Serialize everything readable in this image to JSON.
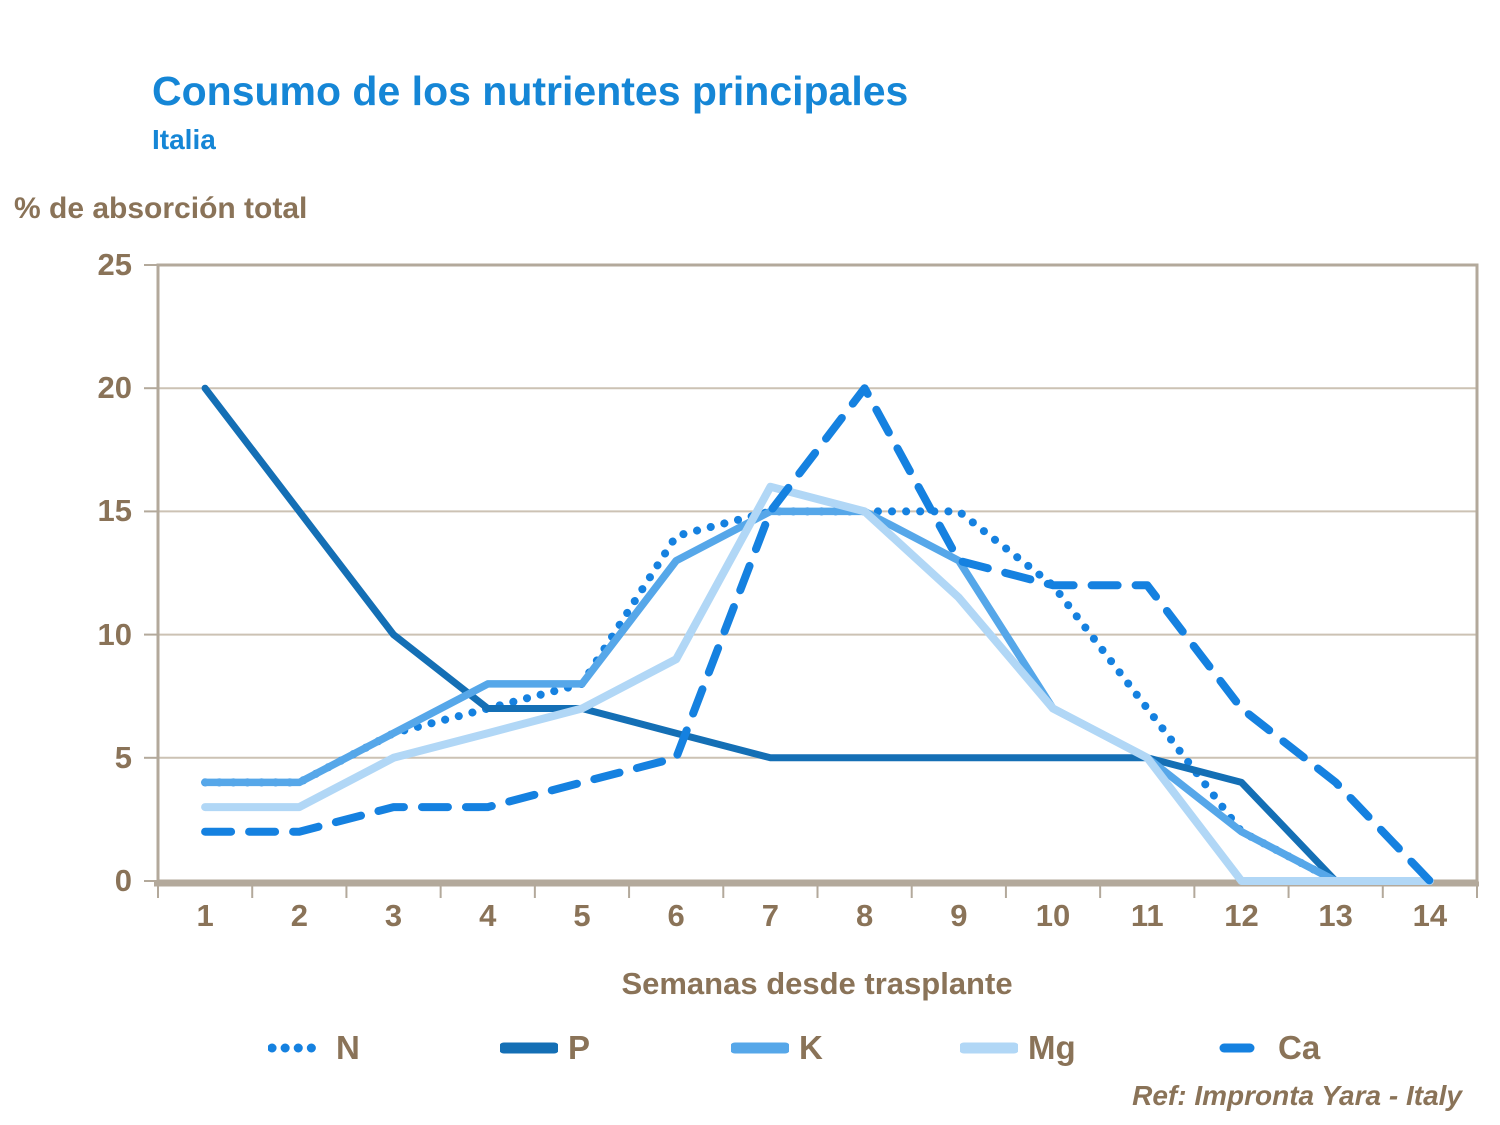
{
  "header": {
    "title": "Consumo de los nutrientes principales",
    "subtitle": "Italia"
  },
  "axes": {
    "y_title": "% de absorción total",
    "x_title": "Semanas desde trasplante"
  },
  "footer": {
    "ref": "Ref: Impronta Yara - Italy"
  },
  "colors": {
    "title_blue": "#1586D6",
    "text_brown": "#8A7358",
    "gridline": "#CCC2B4",
    "frame": "#B3A99B",
    "background": "#FFFFFF"
  },
  "chart_data": {
    "type": "line",
    "title": "Consumo de los nutrientes principales",
    "subtitle": "Italia",
    "ylabel": "% de absorción total",
    "xlabel": "Semanas desde trasplante",
    "x": [
      1,
      2,
      3,
      4,
      5,
      6,
      7,
      8,
      9,
      10,
      11,
      12,
      13,
      14
    ],
    "ylim": [
      0,
      25
    ],
    "yticks": [
      0,
      5,
      10,
      15,
      20,
      25
    ],
    "grid": true,
    "legend_position": "bottom",
    "series": [
      {
        "name": "N",
        "style": "dotted",
        "color": "#1581E0",
        "values": [
          4,
          4,
          6,
          7,
          8,
          14,
          15,
          15,
          15,
          12,
          7,
          2,
          0,
          null
        ]
      },
      {
        "name": "P",
        "style": "solid",
        "color": "#146FB5",
        "values": [
          20,
          15,
          10,
          7,
          7,
          6,
          5,
          5,
          5,
          5,
          5,
          4,
          0,
          null
        ]
      },
      {
        "name": "K",
        "style": "solid",
        "color": "#56A7E9",
        "values": [
          4,
          4,
          6,
          8,
          8,
          13,
          15,
          15,
          13,
          7,
          5,
          2,
          0,
          null
        ]
      },
      {
        "name": "Mg",
        "style": "solid",
        "color": "#B1D7F6",
        "values": [
          3,
          3,
          5,
          6,
          7,
          9,
          16,
          15,
          11.5,
          7,
          5,
          0,
          0,
          0
        ]
      },
      {
        "name": "Ca",
        "style": "dashed",
        "color": "#1581E0",
        "values": [
          2,
          2,
          3,
          3,
          4,
          5,
          15,
          20,
          13,
          12,
          12,
          7,
          4,
          0
        ]
      }
    ]
  }
}
